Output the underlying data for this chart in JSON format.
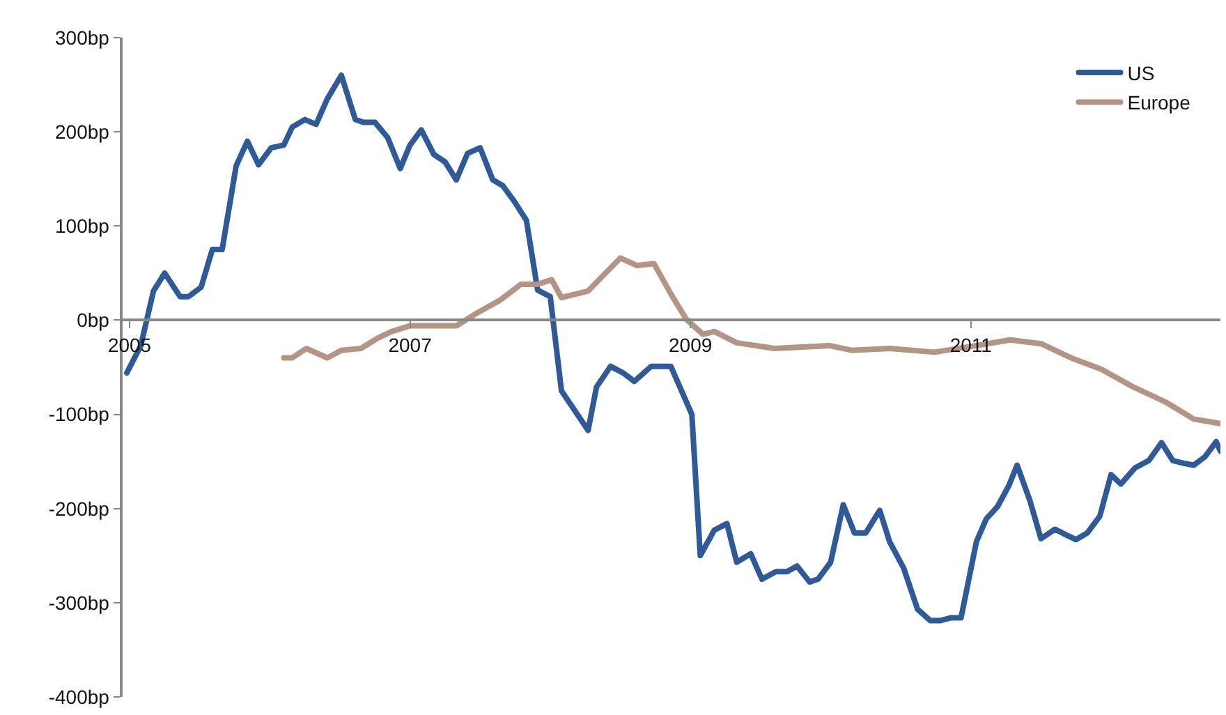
{
  "chart_data": {
    "type": "line",
    "xlim": [
      2004.95,
      2012.78
    ],
    "xticks": [
      2005,
      2007,
      2009,
      2011
    ],
    "ylim": [
      -400,
      300
    ],
    "yticks": [
      {
        "value": 300,
        "label": "300bp"
      },
      {
        "value": 200,
        "label": "200bp"
      },
      {
        "value": 100,
        "label": "100bp"
      },
      {
        "value": 0,
        "label": "0bp"
      },
      {
        "value": -100,
        "label": "-100bp"
      },
      {
        "value": -200,
        "label": "-200bp"
      },
      {
        "value": -300,
        "label": "-300bp"
      },
      {
        "value": -400,
        "label": "-400bp"
      }
    ],
    "grid": false,
    "legend": "top right",
    "marker": "none",
    "line_style": "solid",
    "series": [
      {
        "name": "US",
        "color": "#2e5a9a",
        "x": [
          2004.98,
          2005.08,
          2005.17,
          2005.25,
          2005.36,
          2005.42,
          2005.51,
          2005.59,
          2005.66,
          2005.76,
          2005.84,
          2005.92,
          2006.01,
          2006.1,
          2006.16,
          2006.25,
          2006.33,
          2006.41,
          2006.51,
          2006.61,
          2006.67,
          2006.75,
          2006.84,
          2006.93,
          2007.0,
          2007.08,
          2007.17,
          2007.25,
          2007.33,
          2007.41,
          2007.5,
          2007.59,
          2007.66,
          2007.74,
          2007.83,
          2007.91,
          2008.0,
          2008.08,
          2008.27,
          2008.33,
          2008.43,
          2008.52,
          2008.6,
          2008.72,
          2008.86,
          2009.01,
          2009.07,
          2009.17,
          2009.26,
          2009.33,
          2009.43,
          2009.51,
          2009.61,
          2009.69,
          2009.76,
          2009.85,
          2009.91,
          2010.0,
          2010.09,
          2010.17,
          2010.25,
          2010.35,
          2010.42,
          2010.52,
          2010.62,
          2010.71,
          2010.78,
          2010.86,
          2010.93,
          2011.04,
          2011.11,
          2011.19,
          2011.27,
          2011.33,
          2011.42,
          2011.5,
          2011.6,
          2011.68,
          2011.75,
          2011.83,
          2011.92,
          2012.0,
          2012.07,
          2012.17,
          2012.27,
          2012.36,
          2012.44,
          2012.52,
          2012.59,
          2012.67,
          2012.75,
          2012.78
        ],
        "values": [
          -56,
          -27,
          31,
          50,
          25,
          25,
          35,
          75,
          75,
          164,
          190,
          165,
          183,
          186,
          205,
          213,
          208,
          235,
          260,
          213,
          210,
          210,
          194,
          161,
          186,
          202,
          176,
          168,
          149,
          177,
          183,
          149,
          143,
          127,
          106,
          32,
          25,
          -75,
          -117,
          -71,
          -49,
          -56,
          -65,
          -49,
          -49,
          -100,
          -250,
          -223,
          -216,
          -257,
          -248,
          -275,
          -267,
          -267,
          -261,
          -278,
          -275,
          -257,
          -196,
          -226,
          -226,
          -202,
          -235,
          -263,
          -307,
          -319,
          -319,
          -316,
          -316,
          -235,
          -211,
          -198,
          -176,
          -154,
          -191,
          -232,
          -222,
          -228,
          -233,
          -226,
          -208,
          -164,
          -174,
          -157,
          -149,
          -130,
          -149,
          -152,
          -154,
          -145,
          -129,
          -139
        ]
      },
      {
        "name": "Europe",
        "color": "#b49484",
        "x": [
          2006.1,
          2006.16,
          2006.26,
          2006.41,
          2006.51,
          2006.65,
          2006.77,
          2006.87,
          2007.0,
          2007.33,
          2007.46,
          2007.64,
          2007.79,
          2007.91,
          2008.01,
          2008.08,
          2008.27,
          2008.5,
          2008.62,
          2008.74,
          2008.86,
          2008.97,
          2009.09,
          2009.17,
          2009.33,
          2009.6,
          2009.99,
          2010.15,
          2010.42,
          2010.74,
          2011.04,
          2011.28,
          2011.5,
          2011.73,
          2011.93,
          2012.16,
          2012.39,
          2012.59,
          2012.75,
          2012.78
        ],
        "values": [
          -40,
          -40,
          -30,
          -40,
          -32,
          -30,
          -19,
          -12,
          -6,
          -6,
          6,
          21,
          38,
          38,
          43,
          24,
          31,
          66,
          58,
          60,
          28,
          1,
          -15,
          -12,
          -24,
          -30,
          -27,
          -32,
          -30,
          -34,
          -27,
          -21,
          -25,
          -41,
          -52,
          -71,
          -87,
          -105,
          -109,
          -110
        ]
      }
    ]
  }
}
